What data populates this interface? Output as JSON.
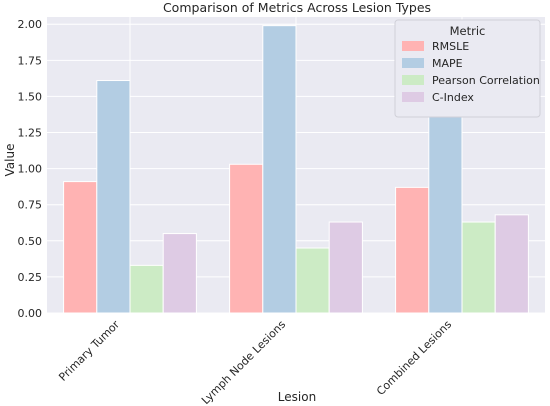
{
  "chart_data": {
    "type": "bar",
    "title": "Comparison of Metrics Across Lesion Types",
    "xlabel": "Lesion",
    "ylabel": "Value",
    "ylim": [
      0,
      2.05
    ],
    "yticks": [
      "0.00",
      "0.25",
      "0.50",
      "0.75",
      "1.00",
      "1.25",
      "1.50",
      "1.75",
      "2.00"
    ],
    "categories": [
      "Primary Tumor",
      "Lymph Node Lesions",
      "Combined Lesions"
    ],
    "series": [
      {
        "name": "RMSLE",
        "color": "#ffb3b3",
        "values": [
          0.91,
          1.03,
          0.87
        ]
      },
      {
        "name": "MAPE",
        "color": "#b3cde3",
        "values": [
          1.61,
          1.99,
          1.46
        ]
      },
      {
        "name": "Pearson Correlation",
        "color": "#ccebc5",
        "values": [
          0.33,
          0.45,
          0.63
        ]
      },
      {
        "name": "C-Index",
        "color": "#decbe4",
        "values": [
          0.55,
          0.63,
          0.68
        ]
      }
    ],
    "legend": {
      "title": "Metric",
      "placement": "top-right"
    },
    "grid": true,
    "background": "#eaeaf2"
  }
}
